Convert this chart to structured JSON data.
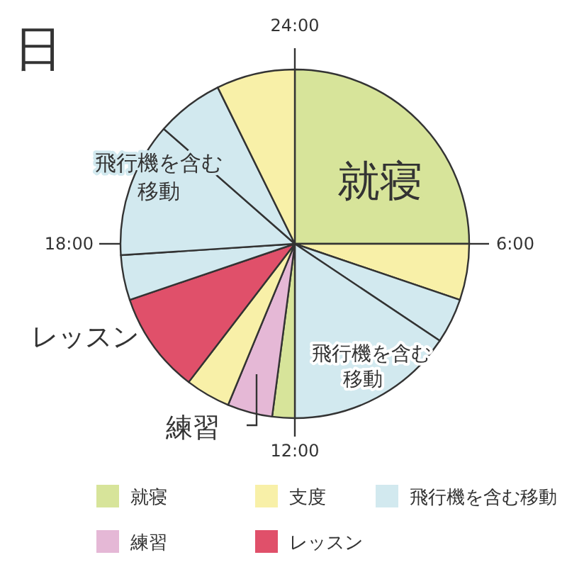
{
  "chart_data": {
    "type": "pie",
    "title": "日",
    "categories": [
      "就寝",
      "支度",
      null,
      "飛行機を含む移動",
      null,
      "練習",
      null,
      "レッスン",
      null,
      "飛行機を含む移動",
      null,
      null
    ],
    "values": [
      25,
      5.21,
      4.17,
      15.62,
      2.08,
      4.17,
      4.17,
      9.37,
      4.17,
      12.5,
      6.25,
      7.29
    ],
    "colors": [
      "#d7e49a",
      "#f8f0a8",
      "#d2e9ef",
      "#d2e9ef",
      "#d7e49a",
      "#e5b8d6",
      "#f8f0a8",
      "#e0506a",
      "#d2e9ef",
      "#d2e9ef",
      "#d2e9ef",
      "#f8f0a8"
    ],
    "annotations": [
      "24:00",
      "6:00",
      "12:00",
      "18:00"
    ],
    "legend": "bottom"
  }
}
